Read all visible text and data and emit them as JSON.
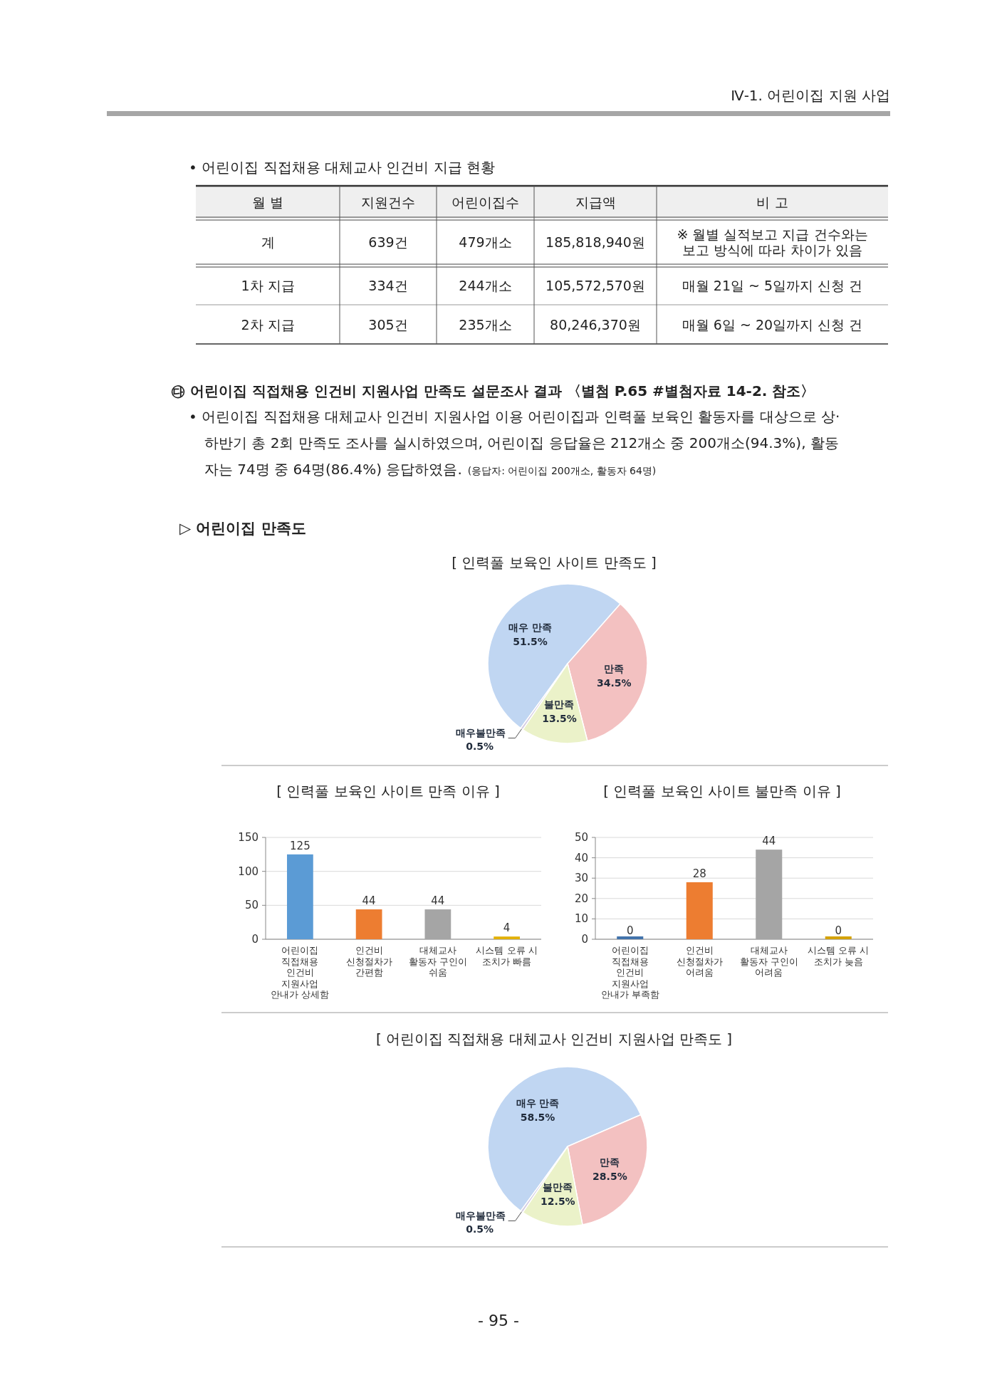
{
  "chart_data": [
    {
      "type": "other",
      "title": "• 어린이집 직접채용 대체교사 인건비 지급 현황",
      "categories": [
        "월 별",
        "지원건수",
        "어린이집수",
        "지급액",
        "비 고"
      ],
      "y_categories": [
        "계",
        "1차 지급",
        "2차 지급"
      ],
      "cell_labels": [
        [
          "639건",
          "479개소",
          "185,818,940원",
          "※ 월별 실적보고 지급 건수와는\n보고 방식에 따라 차이가 있음"
        ],
        [
          "334건",
          "244개소",
          "105,572,570원",
          "매월 21일 ~ 5일까지 신청 건"
        ],
        [
          "305건",
          "235개소",
          "80,246,370원",
          "매월 6일 ~ 20일까지 신청 건"
        ]
      ],
      "annotations": [
        "Ⅳ-1. 어린이집 지원 사업",
        "- 95 -"
      ]
    },
    {
      "type": "other",
      "title": "㉰ 어린이집 직접채용 인건비 지원사업 만족도 설문조사 결과 〈별첨 P.65 #별첨자료 14-2. 참조〉",
      "annotations": [
        "• 어린이집 직접채용 대체교사 인건비 지원사업 이용 어린이집과 인력풀 보육인 활동자를 대상으로 상·",
        "하반기 총 2회 만족도 조사를 실시하였으며, 어린이집 응답율은 212개소 중 200개소(94.3%), 활동",
        "자는 74명 중 64명(86.4%) 응답하였음.",
        "(응답자: 어린이집 200개소, 활동자 64명)",
        "▷ 어린이집 만족도"
      ]
    },
    {
      "type": "pie",
      "title": "[ 인력풀 보육인 사이트 만족도 ]",
      "categories": [
        "매우 만족",
        "만족",
        "불만족",
        "매우불만족"
      ],
      "values": [
        51.5,
        34.5,
        13.5,
        0.5
      ],
      "value_labels": [
        "51.5%",
        "34.5%",
        "13.5%",
        "0.5%"
      ],
      "colors": [
        "#c0d6f2",
        "#f3c1c1",
        "#ebf2c9",
        "#d3cce2"
      ]
    },
    {
      "type": "bar",
      "title": "[ 인력풀 보육인 사이트 만족 이유 ]",
      "categories": [
        "어린이집\n직접채용\n인건비\n지원사업\n안내가 상세함",
        "인건비\n신청절차가\n간편함",
        "대체교사\n활동자 구인이\n쉬움",
        "시스템 오류 시\n조치가 빠름"
      ],
      "values": [
        125,
        44,
        44,
        4
      ],
      "colors": [
        "#5b9bd5",
        "#ed7d31",
        "#a5a5a5",
        "#e2b007"
      ],
      "ylim": [
        0,
        150
      ],
      "yticks": [
        0,
        50,
        100,
        150
      ],
      "grid": "y",
      "data_labels": true
    },
    {
      "type": "bar",
      "title": "[ 인력풀 보육인 사이트 불만족 이유 ]",
      "categories": [
        "어린이집\n직접채용\n인건비\n지원사업\n안내가 부족함",
        "인건비\n신청절차가\n어려움",
        "대체교사\n활동자 구인이\n어려움",
        "시스템 오류 시\n조치가 늦음"
      ],
      "values": [
        0,
        28,
        44,
        0
      ],
      "colors": [
        "#4273ab",
        "#ed7d31",
        "#a5a5a5",
        "#d4a20a"
      ],
      "ylim": [
        0,
        50
      ],
      "yticks": [
        0,
        10,
        20,
        30,
        40,
        50
      ],
      "grid": "y",
      "data_labels": true
    },
    {
      "type": "pie",
      "title": "[ 어린이집 직접채용 대체교사 인건비 지원사업 만족도 ]",
      "categories": [
        "매우 만족",
        "만족",
        "불만족",
        "매우불만족"
      ],
      "values": [
        58.5,
        28.5,
        12.5,
        0.5
      ],
      "value_labels": [
        "58.5%",
        "28.5%",
        "12.5%",
        "0.5%"
      ],
      "colors": [
        "#c0d6f2",
        "#f3c1c1",
        "#ebf2c9",
        "#d3cce2"
      ]
    }
  ]
}
